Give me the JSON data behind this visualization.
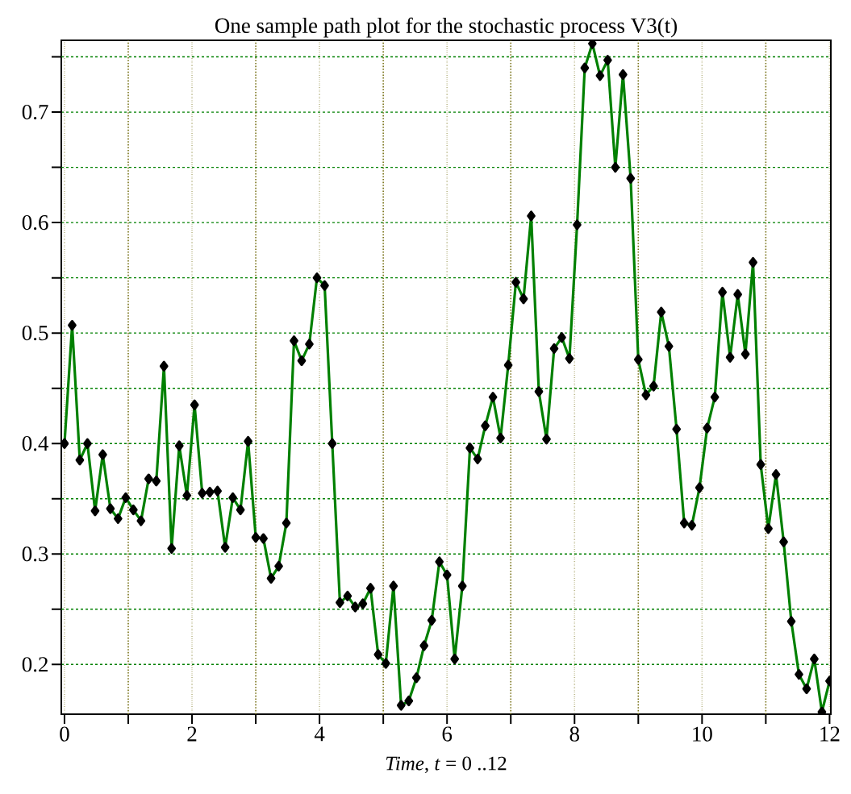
{
  "chart_data": {
    "type": "line",
    "title": "One sample path plot for the stochastic process V3(t)",
    "xlabel": "*Time*, *t* = 0 ..12",
    "x": [
      0,
      0.12,
      0.24,
      0.36,
      0.48,
      0.6,
      0.72,
      0.84,
      0.96,
      1.08,
      1.2,
      1.32,
      1.44,
      1.56,
      1.68,
      1.8,
      1.92,
      2.04,
      2.16,
      2.28,
      2.4,
      2.52,
      2.64,
      2.76,
      2.88,
      3,
      3.12,
      3.24,
      3.36,
      3.48,
      3.6,
      3.72,
      3.84,
      3.96,
      4.08,
      4.2,
      4.32,
      4.44,
      4.56,
      4.68,
      4.8,
      4.92,
      5.04,
      5.16,
      5.28,
      5.4,
      5.52,
      5.64,
      5.76,
      5.88,
      6,
      6.12,
      6.24,
      6.36,
      6.48,
      6.6,
      6.72,
      6.84,
      6.96,
      7.08,
      7.2,
      7.32,
      7.44,
      7.56,
      7.68,
      7.8,
      7.92,
      8.04,
      8.16,
      8.28,
      8.4,
      8.52,
      8.64,
      8.76,
      8.88,
      9,
      9.12,
      9.24,
      9.36,
      9.48,
      9.6,
      9.72,
      9.84,
      9.96,
      10.08,
      10.2,
      10.32,
      10.44,
      10.56,
      10.68,
      10.8,
      10.92,
      11.04,
      11.16,
      11.28,
      11.4,
      11.52,
      11.64,
      11.76,
      11.88,
      12
    ],
    "series": [
      {
        "color": "#008000",
        "values": [
          0.4,
          0.507,
          0.385,
          0.4,
          0.339,
          0.39,
          0.341,
          0.332,
          0.351,
          0.34,
          0.33,
          0.368,
          0.366,
          0.47,
          0.305,
          0.398,
          0.353,
          0.435,
          0.355,
          0.356,
          0.357,
          0.306,
          0.351,
          0.34,
          0.402,
          0.315,
          0.314,
          0.278,
          0.289,
          0.328,
          0.493,
          0.475,
          0.49,
          0.55,
          0.543,
          0.4,
          0.256,
          0.262,
          0.252,
          0.255,
          0.269,
          0.209,
          0.201,
          0.271,
          0.163,
          0.167,
          0.188,
          0.217,
          0.24,
          0.293,
          0.281,
          0.205,
          0.271,
          0.396,
          0.386,
          0.416,
          0.442,
          0.405,
          0.471,
          0.546,
          0.531,
          0.606,
          0.447,
          0.404,
          0.486,
          0.496,
          0.477,
          0.598,
          0.74,
          0.762,
          0.733,
          0.747,
          0.65,
          0.734,
          0.64,
          0.476,
          0.444,
          0.452,
          0.519,
          0.488,
          0.413,
          0.328,
          0.326,
          0.36,
          0.414,
          0.442,
          0.537,
          0.478,
          0.535,
          0.481,
          0.564,
          0.381,
          0.323,
          0.372,
          0.311,
          0.239,
          0.191,
          0.178,
          0.205,
          0.157,
          0.185
        ]
      }
    ],
    "xlim": [
      -0.05,
      12.02
    ],
    "ylim": [
      0.155,
      0.765
    ],
    "xticks": [
      0,
      {
        "value": 1,
        "label": null
      },
      2,
      {
        "value": 3,
        "label": null
      },
      4,
      {
        "value": 5,
        "label": null
      },
      6,
      {
        "value": 7,
        "label": null
      },
      8,
      {
        "value": 9,
        "label": null
      },
      10,
      {
        "value": 11,
        "label": null
      },
      12
    ],
    "yticks": [
      0.2,
      {
        "value": 0.25,
        "label": null
      },
      0.3,
      {
        "value": 0.35,
        "label": null
      },
      0.4,
      {
        "value": 0.45,
        "label": null
      },
      0.5,
      {
        "value": 0.55,
        "label": null
      },
      0.6,
      {
        "value": 0.65,
        "label": null
      },
      0.7,
      {
        "value": 0.75,
        "label": null
      }
    ],
    "grid": true,
    "marker": "diamond",
    "line_style": "solid"
  }
}
